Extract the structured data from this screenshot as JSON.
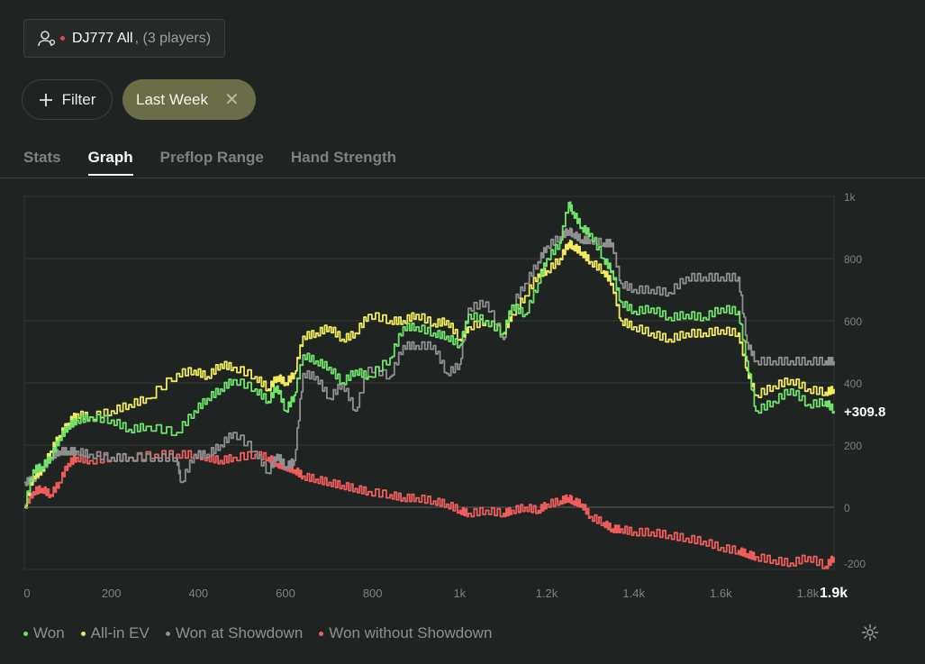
{
  "player_selector": {
    "name": "DJ777 All",
    "count": ", (3 players)"
  },
  "filter_button": {
    "label": "Filter"
  },
  "active_filter": {
    "label": "Last Week"
  },
  "tabs": [
    {
      "label": "Stats",
      "active": false
    },
    {
      "label": "Graph",
      "active": true
    },
    {
      "label": "Preflop Range",
      "active": false
    },
    {
      "label": "Hand Strength",
      "active": false
    }
  ],
  "colors": {
    "won": "#6ee36a",
    "allin_ev": "#f1ea5a",
    "won_at_showdown": "#8f8f8f",
    "won_without_showdown": "#ee5d5b",
    "accent_chip": "#6b6d47"
  },
  "legend": [
    {
      "label": "Won",
      "color": "#6ee36a"
    },
    {
      "label": "All-in EV",
      "color": "#f1ea5a"
    },
    {
      "label": "Won at Showdown",
      "color": "#8f8f8f"
    },
    {
      "label": "Won without Showdown",
      "color": "#ee5d5b"
    }
  ],
  "chart_data": {
    "type": "line",
    "title": "",
    "xlabel": "",
    "ylabel": "",
    "xlim": [
      0,
      1860
    ],
    "ylim": [
      -200,
      1000
    ],
    "x_ticks": [
      "0",
      "200",
      "400",
      "600",
      "800",
      "1k",
      "1.2k",
      "1.4k",
      "1.6k",
      "1.8k"
    ],
    "x_end_label": "1.9k",
    "y_ticks": [
      "1k",
      "800",
      "600",
      "400",
      "200",
      "0",
      "-200"
    ],
    "current_value_label": "+309.8",
    "grid": true,
    "legend_position": "bottom",
    "series": [
      {
        "name": "Won",
        "color": "#6ee36a",
        "points": [
          [
            0,
            0
          ],
          [
            20,
            120
          ],
          [
            40,
            130
          ],
          [
            60,
            160
          ],
          [
            80,
            220
          ],
          [
            100,
            260
          ],
          [
            120,
            280
          ],
          [
            150,
            290
          ],
          [
            200,
            280
          ],
          [
            240,
            250
          ],
          [
            280,
            260
          ],
          [
            350,
            240
          ],
          [
            390,
            310
          ],
          [
            420,
            350
          ],
          [
            450,
            380
          ],
          [
            480,
            410
          ],
          [
            530,
            380
          ],
          [
            560,
            340
          ],
          [
            580,
            390
          ],
          [
            600,
            310
          ],
          [
            620,
            360
          ],
          [
            640,
            490
          ],
          [
            670,
            470
          ],
          [
            700,
            450
          ],
          [
            730,
            400
          ],
          [
            760,
            440
          ],
          [
            790,
            420
          ],
          [
            840,
            480
          ],
          [
            870,
            580
          ],
          [
            900,
            580
          ],
          [
            940,
            560
          ],
          [
            970,
            550
          ],
          [
            1000,
            520
          ],
          [
            1020,
            620
          ],
          [
            1060,
            600
          ],
          [
            1100,
            560
          ],
          [
            1120,
            650
          ],
          [
            1150,
            620
          ],
          [
            1180,
            720
          ],
          [
            1200,
            800
          ],
          [
            1230,
            850
          ],
          [
            1250,
            980
          ],
          [
            1260,
            950
          ],
          [
            1280,
            900
          ],
          [
            1300,
            880
          ],
          [
            1330,
            800
          ],
          [
            1350,
            760
          ],
          [
            1370,
            660
          ],
          [
            1400,
            630
          ],
          [
            1440,
            640
          ],
          [
            1480,
            610
          ],
          [
            1520,
            620
          ],
          [
            1560,
            610
          ],
          [
            1600,
            640
          ],
          [
            1640,
            630
          ],
          [
            1660,
            470
          ],
          [
            1680,
            310
          ],
          [
            1720,
            340
          ],
          [
            1760,
            380
          ],
          [
            1800,
            330
          ],
          [
            1840,
            340
          ],
          [
            1860,
            310
          ]
        ]
      },
      {
        "name": "All-in EV",
        "color": "#f1ea5a",
        "points": [
          [
            0,
            0
          ],
          [
            20,
            100
          ],
          [
            40,
            120
          ],
          [
            60,
            180
          ],
          [
            80,
            230
          ],
          [
            100,
            270
          ],
          [
            120,
            300
          ],
          [
            150,
            290
          ],
          [
            200,
            310
          ],
          [
            240,
            330
          ],
          [
            280,
            350
          ],
          [
            350,
            430
          ],
          [
            390,
            440
          ],
          [
            420,
            420
          ],
          [
            450,
            460
          ],
          [
            480,
            450
          ],
          [
            530,
            420
          ],
          [
            560,
            380
          ],
          [
            580,
            420
          ],
          [
            600,
            400
          ],
          [
            620,
            430
          ],
          [
            640,
            550
          ],
          [
            670,
            560
          ],
          [
            700,
            580
          ],
          [
            730,
            540
          ],
          [
            760,
            560
          ],
          [
            790,
            620
          ],
          [
            840,
            600
          ],
          [
            870,
            600
          ],
          [
            900,
            620
          ],
          [
            940,
            590
          ],
          [
            970,
            600
          ],
          [
            1000,
            540
          ],
          [
            1020,
            580
          ],
          [
            1060,
            600
          ],
          [
            1100,
            560
          ],
          [
            1120,
            620
          ],
          [
            1150,
            680
          ],
          [
            1180,
            750
          ],
          [
            1200,
            760
          ],
          [
            1230,
            800
          ],
          [
            1250,
            850
          ],
          [
            1260,
            840
          ],
          [
            1280,
            820
          ],
          [
            1300,
            790
          ],
          [
            1330,
            760
          ],
          [
            1350,
            720
          ],
          [
            1370,
            600
          ],
          [
            1400,
            580
          ],
          [
            1440,
            560
          ],
          [
            1480,
            540
          ],
          [
            1520,
            560
          ],
          [
            1560,
            560
          ],
          [
            1600,
            570
          ],
          [
            1640,
            560
          ],
          [
            1660,
            440
          ],
          [
            1680,
            360
          ],
          [
            1720,
            390
          ],
          [
            1760,
            410
          ],
          [
            1800,
            380
          ],
          [
            1840,
            370
          ],
          [
            1860,
            380
          ]
        ]
      },
      {
        "name": "Won at Showdown",
        "color": "#8f8f8f",
        "points": [
          [
            0,
            80
          ],
          [
            20,
            90
          ],
          [
            40,
            120
          ],
          [
            60,
            160
          ],
          [
            80,
            180
          ],
          [
            100,
            180
          ],
          [
            120,
            180
          ],
          [
            150,
            170
          ],
          [
            200,
            160
          ],
          [
            240,
            160
          ],
          [
            300,
            160
          ],
          [
            350,
            160
          ],
          [
            360,
            80
          ],
          [
            390,
            170
          ],
          [
            420,
            170
          ],
          [
            450,
            200
          ],
          [
            480,
            240
          ],
          [
            530,
            180
          ],
          [
            560,
            110
          ],
          [
            580,
            170
          ],
          [
            600,
            130
          ],
          [
            620,
            150
          ],
          [
            640,
            430
          ],
          [
            670,
            420
          ],
          [
            700,
            350
          ],
          [
            730,
            400
          ],
          [
            760,
            310
          ],
          [
            790,
            450
          ],
          [
            840,
            420
          ],
          [
            870,
            520
          ],
          [
            900,
            520
          ],
          [
            940,
            520
          ],
          [
            970,
            430
          ],
          [
            1000,
            460
          ],
          [
            1020,
            640
          ],
          [
            1060,
            660
          ],
          [
            1100,
            540
          ],
          [
            1120,
            650
          ],
          [
            1150,
            720
          ],
          [
            1180,
            790
          ],
          [
            1200,
            840
          ],
          [
            1230,
            870
          ],
          [
            1250,
            890
          ],
          [
            1260,
            880
          ],
          [
            1280,
            860
          ],
          [
            1300,
            860
          ],
          [
            1330,
            850
          ],
          [
            1350,
            850
          ],
          [
            1370,
            720
          ],
          [
            1400,
            700
          ],
          [
            1440,
            700
          ],
          [
            1480,
            690
          ],
          [
            1520,
            740
          ],
          [
            1560,
            740
          ],
          [
            1600,
            740
          ],
          [
            1640,
            740
          ],
          [
            1660,
            530
          ],
          [
            1680,
            470
          ],
          [
            1720,
            470
          ],
          [
            1760,
            470
          ],
          [
            1800,
            470
          ],
          [
            1840,
            470
          ],
          [
            1860,
            470
          ]
        ]
      },
      {
        "name": "Won without Showdown",
        "color": "#ee5d5b",
        "points": [
          [
            0,
            0
          ],
          [
            20,
            50
          ],
          [
            40,
            60
          ],
          [
            60,
            40
          ],
          [
            80,
            80
          ],
          [
            100,
            140
          ],
          [
            120,
            160
          ],
          [
            150,
            150
          ],
          [
            200,
            160
          ],
          [
            240,
            160
          ],
          [
            300,
            170
          ],
          [
            350,
            170
          ],
          [
            390,
            170
          ],
          [
            420,
            160
          ],
          [
            450,
            150
          ],
          [
            480,
            160
          ],
          [
            530,
            170
          ],
          [
            560,
            160
          ],
          [
            580,
            140
          ],
          [
            600,
            130
          ],
          [
            620,
            120
          ],
          [
            640,
            100
          ],
          [
            670,
            90
          ],
          [
            700,
            80
          ],
          [
            730,
            70
          ],
          [
            760,
            60
          ],
          [
            790,
            50
          ],
          [
            840,
            40
          ],
          [
            870,
            30
          ],
          [
            900,
            30
          ],
          [
            940,
            20
          ],
          [
            970,
            10
          ],
          [
            1000,
            -10
          ],
          [
            1020,
            -20
          ],
          [
            1060,
            -10
          ],
          [
            1100,
            -20
          ],
          [
            1120,
            -10
          ],
          [
            1150,
            0
          ],
          [
            1180,
            -10
          ],
          [
            1200,
            10
          ],
          [
            1230,
            20
          ],
          [
            1250,
            30
          ],
          [
            1260,
            20
          ],
          [
            1280,
            10
          ],
          [
            1300,
            -30
          ],
          [
            1330,
            -50
          ],
          [
            1350,
            -70
          ],
          [
            1370,
            -70
          ],
          [
            1400,
            -80
          ],
          [
            1440,
            -80
          ],
          [
            1480,
            -90
          ],
          [
            1520,
            -100
          ],
          [
            1560,
            -110
          ],
          [
            1600,
            -130
          ],
          [
            1640,
            -140
          ],
          [
            1660,
            -150
          ],
          [
            1680,
            -160
          ],
          [
            1720,
            -170
          ],
          [
            1760,
            -180
          ],
          [
            1800,
            -160
          ],
          [
            1840,
            -190
          ],
          [
            1860,
            -160
          ]
        ]
      }
    ]
  }
}
